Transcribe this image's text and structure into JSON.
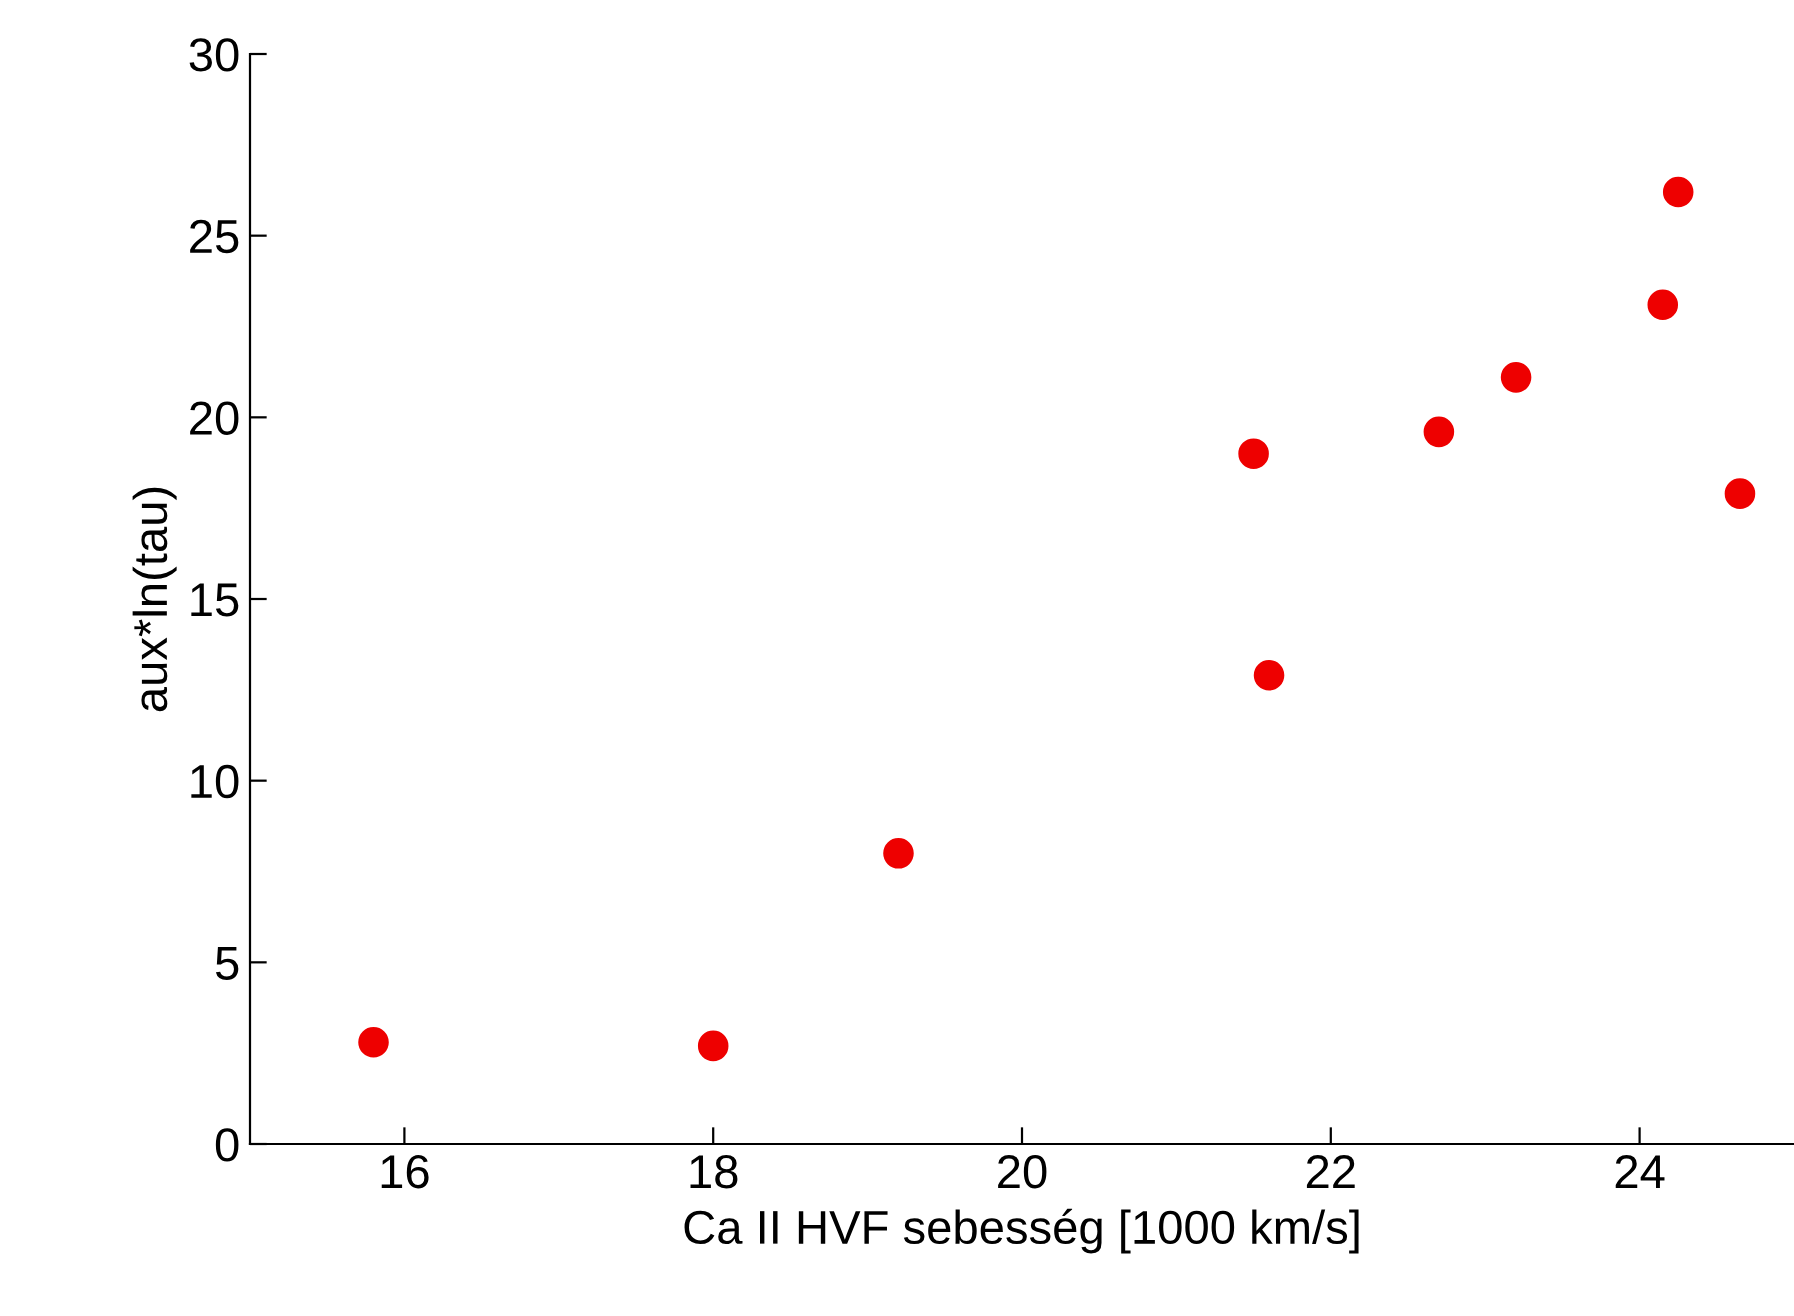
{
  "chart_data": {
    "type": "scatter",
    "xlabel": "Ca II HVF sebesség [1000 km/s]",
    "ylabel": "aux*ln(tau)",
    "x": [
      15.8,
      18.0,
      19.2,
      21.5,
      21.6,
      22.7,
      23.2,
      24.15,
      24.25,
      24.65
    ],
    "series": [
      {
        "color": "#ee0000",
        "values": [
          2.8,
          2.7,
          8.0,
          19.0,
          12.9,
          19.6,
          21.1,
          23.1,
          26.2,
          17.9
        ]
      }
    ],
    "xlim": [
      15,
      25
    ],
    "ylim": [
      0,
      30
    ],
    "xticks": [
      16,
      18,
      20,
      22,
      24
    ],
    "yticks": [
      0,
      5,
      10,
      15,
      20,
      25,
      30
    ],
    "marker": "circle",
    "grid": false,
    "legend": false
  }
}
